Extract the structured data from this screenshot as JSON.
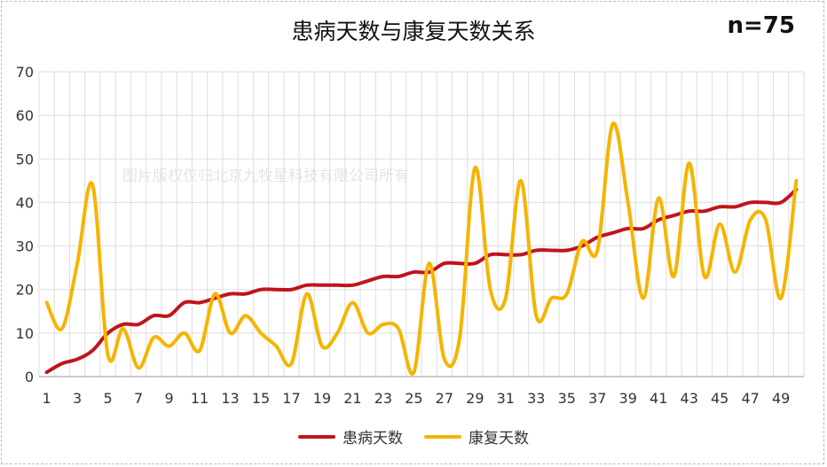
{
  "header": {
    "title": "患病天数与康复天数关系",
    "n_label": "n=75"
  },
  "watermark": "图片版权仅归北京九牧星科技有限公司所有",
  "chart_data": {
    "type": "line",
    "title": "患病天数与康复天数关系",
    "x": [
      1,
      2,
      3,
      4,
      5,
      6,
      7,
      8,
      9,
      10,
      11,
      12,
      13,
      14,
      15,
      16,
      17,
      18,
      19,
      20,
      21,
      22,
      23,
      24,
      25,
      26,
      27,
      28,
      29,
      30,
      31,
      32,
      33,
      34,
      35,
      36,
      37,
      38,
      39,
      40,
      41,
      42,
      43,
      44,
      45,
      46,
      47,
      48,
      49,
      50
    ],
    "x_tick_labels": [
      "1",
      "3",
      "5",
      "7",
      "9",
      "11",
      "13",
      "15",
      "17",
      "19",
      "21",
      "23",
      "25",
      "27",
      "29",
      "31",
      "33",
      "35",
      "37",
      "39",
      "41",
      "43",
      "45",
      "47",
      "49"
    ],
    "ylim": [
      0,
      70
    ],
    "y_ticks": [
      0,
      10,
      20,
      30,
      40,
      50,
      60,
      70
    ],
    "grid": true,
    "legend_position": "bottom",
    "series": [
      {
        "name": "患病天数",
        "color": "#c0141c",
        "values": [
          1,
          3,
          4,
          6,
          10,
          12,
          12,
          14,
          14,
          17,
          17,
          18,
          19,
          19,
          20,
          20,
          20,
          21,
          21,
          21,
          21,
          22,
          23,
          23,
          24,
          24,
          26,
          26,
          26,
          28,
          28,
          28,
          29,
          29,
          29,
          30,
          32,
          33,
          34,
          34,
          36,
          37,
          38,
          38,
          39,
          39,
          40,
          40,
          40,
          43
        ]
      },
      {
        "name": "康复天数",
        "color": "#f5b400",
        "values": [
          17,
          11,
          26,
          44,
          5,
          11,
          2,
          9,
          7,
          10,
          6,
          19,
          10,
          14,
          10,
          7,
          3,
          19,
          7,
          10,
          17,
          10,
          12,
          11,
          1,
          26,
          4,
          9,
          48,
          20,
          18,
          45,
          14,
          18,
          19,
          31,
          29,
          58,
          40,
          18,
          41,
          23,
          49,
          23,
          35,
          24,
          36,
          36,
          18,
          45
        ]
      }
    ]
  }
}
